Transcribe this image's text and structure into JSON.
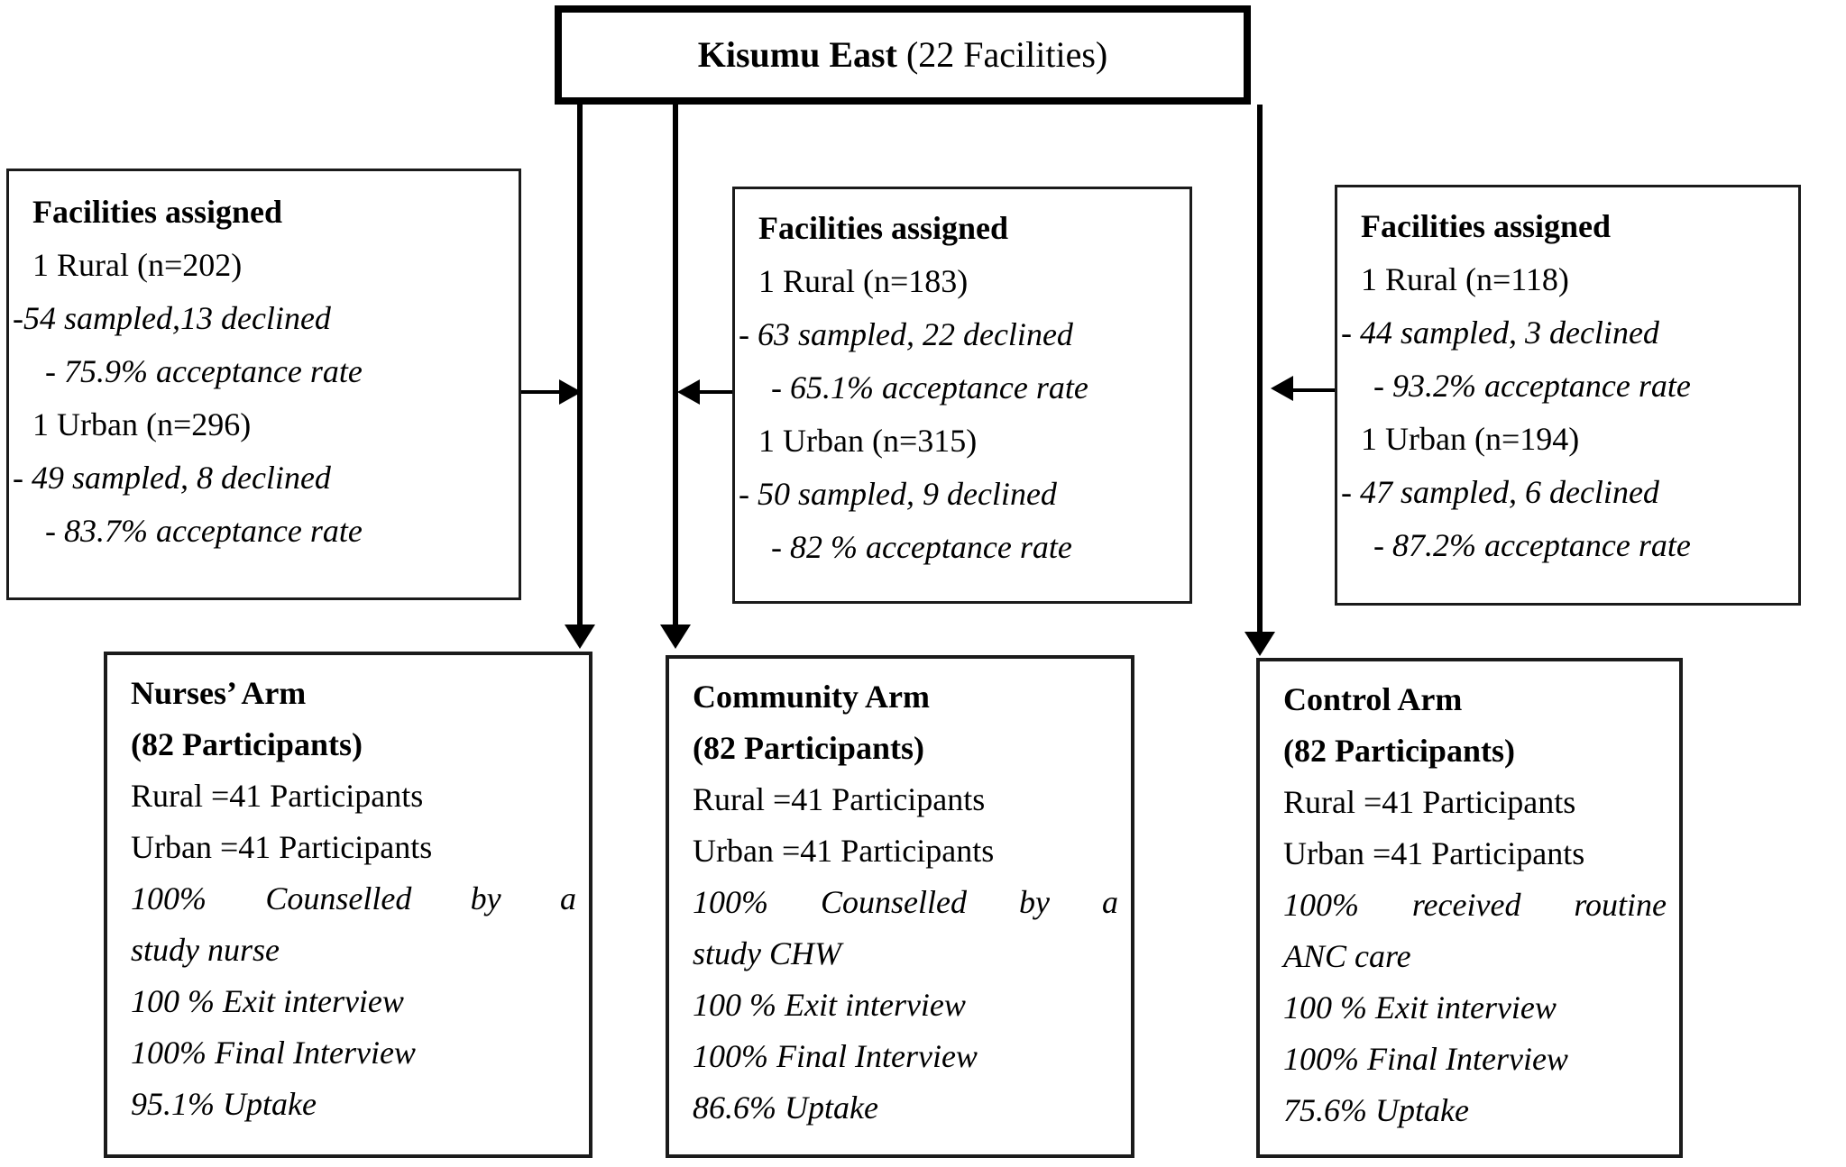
{
  "header": {
    "region_bold": "Kisumu East",
    "region_rest": "(22 Facilities)"
  },
  "facilities": {
    "left": {
      "title": "Facilities assigned",
      "rural": "1 Rural (n=202)",
      "rural_sampled": "-54 sampled,13 declined",
      "rural_rate": "- 75.9% acceptance rate",
      "urban": "1 Urban (n=296)",
      "urban_sampled": "- 49 sampled, 8 declined",
      "urban_rate": "- 83.7% acceptance rate"
    },
    "middle": {
      "title": "Facilities assigned",
      "rural": "1 Rural (n=183)",
      "rural_sampled": "- 63 sampled, 22 declined",
      "rural_rate": "- 65.1% acceptance rate",
      "urban": "1 Urban (n=315)",
      "urban_sampled": "- 50 sampled, 9 declined",
      "urban_rate": "- 82 % acceptance rate"
    },
    "right": {
      "title": "Facilities assigned",
      "rural": "1 Rural (n=118)",
      "rural_sampled": "- 44 sampled, 3 declined",
      "rural_rate": "- 93.2% acceptance rate",
      "urban": "1 Urban (n=194)",
      "urban_sampled": "- 47 sampled, 6 declined",
      "urban_rate": "- 87.2% acceptance rate"
    }
  },
  "arms": {
    "nurses": {
      "title": "Nurses’ Arm",
      "subtitle": "(82 Participants)",
      "rural": "Rural =41 Participants",
      "urban": "Urban =41 Participants",
      "intervention_line1": "100% Counselled by a",
      "intervention_line2": "study nurse",
      "exit": "100 % Exit interview",
      "final": "100% Final Interview",
      "uptake": "95.1% Uptake"
    },
    "community": {
      "title": "Community Arm",
      "subtitle": "(82 Participants)",
      "rural": "Rural =41 Participants",
      "urban": "Urban =41 Participants",
      "intervention_line1": "100% Counselled by a",
      "intervention_line2": "study CHW",
      "exit": "100 % Exit interview",
      "final": "100% Final Interview",
      "uptake": "86.6% Uptake"
    },
    "control": {
      "title": "Control Arm",
      "subtitle": "(82 Participants)",
      "rural": "Rural =41 Participants",
      "urban": "Urban =41 Participants",
      "intervention_line1": "100% received routine",
      "intervention_line2": "ANC care",
      "exit": "100 % Exit interview",
      "final": "100% Final Interview",
      "uptake": "75.6% Uptake"
    }
  }
}
